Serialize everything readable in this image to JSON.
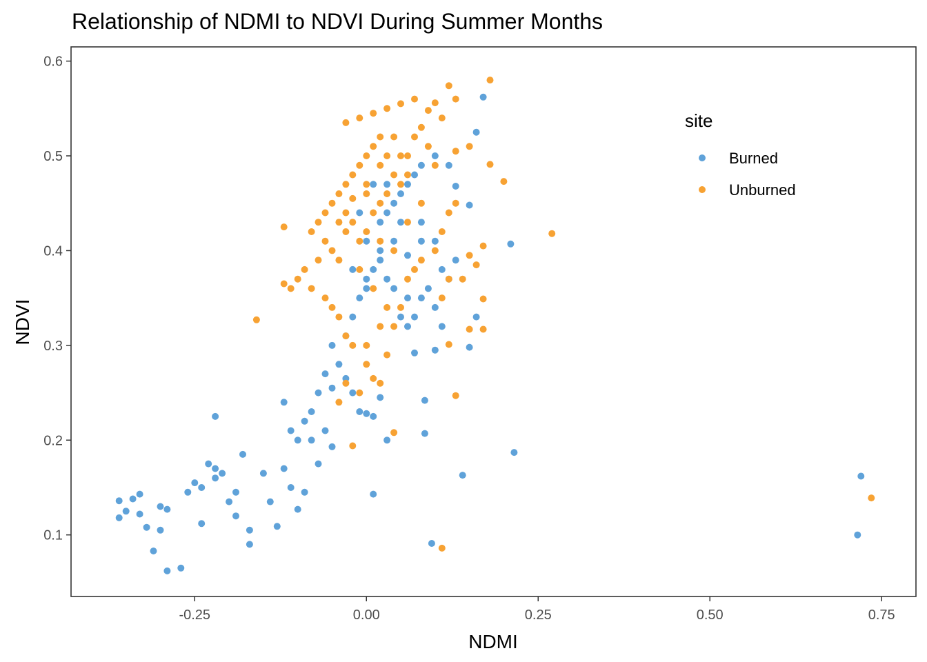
{
  "chart_data": {
    "type": "scatter",
    "title": "Relationship of NDMI to NDVI During Summer Months",
    "xlabel": "NDMI",
    "ylabel": "NDVI",
    "xlim": [
      -0.43,
      0.8
    ],
    "ylim": [
      0.035,
      0.615
    ],
    "x_ticks": [
      -0.25,
      0.0,
      0.25,
      0.5,
      0.75
    ],
    "x_tick_labels": [
      "-0.25",
      "0.00",
      "0.25",
      "0.50",
      "0.75"
    ],
    "y_ticks": [
      0.1,
      0.2,
      0.3,
      0.4,
      0.5,
      0.6
    ],
    "y_tick_labels": [
      "0.1",
      "0.2",
      "0.3",
      "0.4",
      "0.5",
      "0.6"
    ],
    "grid": false,
    "legend": {
      "title": "site",
      "position": "top-right"
    },
    "series": [
      {
        "name": "Burned",
        "color": "#5fa2d9",
        "points": [
          [
            -0.36,
            0.136
          ],
          [
            -0.34,
            0.138
          ],
          [
            -0.33,
            0.143
          ],
          [
            -0.35,
            0.125
          ],
          [
            -0.33,
            0.122
          ],
          [
            -0.32,
            0.108
          ],
          [
            -0.36,
            0.118
          ],
          [
            -0.3,
            0.105
          ],
          [
            -0.31,
            0.083
          ],
          [
            -0.29,
            0.062
          ],
          [
            -0.27,
            0.065
          ],
          [
            -0.3,
            0.13
          ],
          [
            -0.29,
            0.127
          ],
          [
            -0.26,
            0.145
          ],
          [
            -0.25,
            0.155
          ],
          [
            -0.24,
            0.112
          ],
          [
            -0.23,
            0.175
          ],
          [
            -0.22,
            0.17
          ],
          [
            -0.24,
            0.15
          ],
          [
            -0.22,
            0.16
          ],
          [
            -0.21,
            0.165
          ],
          [
            -0.22,
            0.225
          ],
          [
            -0.2,
            0.135
          ],
          [
            -0.19,
            0.145
          ],
          [
            -0.17,
            0.09
          ],
          [
            -0.17,
            0.105
          ],
          [
            -0.18,
            0.185
          ],
          [
            -0.19,
            0.12
          ],
          [
            -0.15,
            0.165
          ],
          [
            -0.14,
            0.135
          ],
          [
            -0.13,
            0.109
          ],
          [
            -0.12,
            0.17
          ],
          [
            -0.11,
            0.15
          ],
          [
            -0.1,
            0.127
          ],
          [
            -0.09,
            0.145
          ],
          [
            -0.1,
            0.2
          ],
          [
            -0.11,
            0.21
          ],
          [
            -0.12,
            0.24
          ],
          [
            -0.08,
            0.2
          ],
          [
            -0.07,
            0.175
          ],
          [
            -0.06,
            0.21
          ],
          [
            -0.05,
            0.193
          ],
          [
            -0.04,
            0.28
          ],
          [
            -0.05,
            0.3
          ],
          [
            -0.03,
            0.31
          ],
          [
            -0.02,
            0.33
          ],
          [
            -0.01,
            0.35
          ],
          [
            0.0,
            0.36
          ],
          [
            0.01,
            0.38
          ],
          [
            0.02,
            0.39
          ],
          [
            0.03,
            0.37
          ],
          [
            0.05,
            0.33
          ],
          [
            0.06,
            0.32
          ],
          [
            0.07,
            0.33
          ],
          [
            0.08,
            0.35
          ],
          [
            0.09,
            0.36
          ],
          [
            0.1,
            0.34
          ],
          [
            0.11,
            0.32
          ],
          [
            0.12,
            0.37
          ],
          [
            0.13,
            0.39
          ],
          [
            0.15,
            0.298
          ],
          [
            0.16,
            0.33
          ],
          [
            0.07,
            0.292
          ],
          [
            0.1,
            0.295
          ],
          [
            0.14,
            0.163
          ],
          [
            0.21,
            0.407
          ],
          [
            0.215,
            0.187
          ],
          [
            0.17,
            0.562
          ],
          [
            0.15,
            0.448
          ],
          [
            0.13,
            0.468
          ],
          [
            0.12,
            0.49
          ],
          [
            0.1,
            0.5
          ],
          [
            0.01,
            0.143
          ],
          [
            0.095,
            0.091
          ],
          [
            0.085,
            0.207
          ],
          [
            0.085,
            0.242
          ],
          [
            0.02,
            0.245
          ],
          [
            0.01,
            0.225
          ],
          [
            0.03,
            0.2
          ],
          [
            -0.01,
            0.23
          ],
          [
            0.0,
            0.228
          ],
          [
            -0.03,
            0.265
          ],
          [
            -0.02,
            0.25
          ],
          [
            -0.05,
            0.255
          ],
          [
            -0.06,
            0.27
          ],
          [
            -0.07,
            0.25
          ],
          [
            -0.08,
            0.23
          ],
          [
            -0.09,
            0.22
          ],
          [
            0.72,
            0.162
          ],
          [
            0.715,
            0.1
          ],
          [
            0.16,
            0.525
          ],
          [
            0.08,
            0.49
          ],
          [
            0.06,
            0.47
          ],
          [
            0.04,
            0.45
          ],
          [
            0.02,
            0.43
          ],
          [
            0.0,
            0.41
          ],
          [
            0.03,
            0.44
          ],
          [
            0.05,
            0.46
          ],
          [
            0.07,
            0.48
          ],
          [
            0.01,
            0.47
          ],
          [
            0.03,
            0.47
          ],
          [
            0.05,
            0.43
          ],
          [
            -0.01,
            0.44
          ],
          [
            0.04,
            0.41
          ],
          [
            0.06,
            0.395
          ],
          [
            0.08,
            0.41
          ],
          [
            0.02,
            0.4
          ],
          [
            0.0,
            0.37
          ],
          [
            -0.02,
            0.38
          ],
          [
            0.04,
            0.36
          ],
          [
            0.06,
            0.35
          ],
          [
            0.08,
            0.43
          ],
          [
            0.1,
            0.41
          ],
          [
            0.11,
            0.38
          ]
        ]
      },
      {
        "name": "Unburned",
        "color": "#f7a233",
        "points": [
          [
            0.18,
            0.58
          ],
          [
            0.12,
            0.574
          ],
          [
            0.13,
            0.56
          ],
          [
            0.1,
            0.556
          ],
          [
            0.07,
            0.56
          ],
          [
            0.05,
            0.555
          ],
          [
            0.03,
            0.55
          ],
          [
            0.01,
            0.545
          ],
          [
            -0.01,
            0.54
          ],
          [
            -0.03,
            0.535
          ],
          [
            0.09,
            0.548
          ],
          [
            0.11,
            0.54
          ],
          [
            0.15,
            0.51
          ],
          [
            0.13,
            0.505
          ],
          [
            0.18,
            0.491
          ],
          [
            0.2,
            0.473
          ],
          [
            0.27,
            0.418
          ],
          [
            0.17,
            0.405
          ],
          [
            0.16,
            0.385
          ],
          [
            0.15,
            0.395
          ],
          [
            0.14,
            0.37
          ],
          [
            0.12,
            0.37
          ],
          [
            0.11,
            0.35
          ],
          [
            0.17,
            0.349
          ],
          [
            0.17,
            0.317
          ],
          [
            0.15,
            0.317
          ],
          [
            0.12,
            0.301
          ],
          [
            0.13,
            0.247
          ],
          [
            0.04,
            0.208
          ],
          [
            -0.02,
            0.194
          ],
          [
            0.735,
            0.139
          ],
          [
            0.11,
            0.086
          ],
          [
            -0.16,
            0.327
          ],
          [
            -0.12,
            0.425
          ],
          [
            -0.08,
            0.42
          ],
          [
            -0.07,
            0.43
          ],
          [
            -0.05,
            0.45
          ],
          [
            -0.04,
            0.46
          ],
          [
            -0.03,
            0.47
          ],
          [
            -0.02,
            0.48
          ],
          [
            -0.01,
            0.49
          ],
          [
            0.0,
            0.5
          ],
          [
            0.01,
            0.51
          ],
          [
            0.02,
            0.52
          ],
          [
            0.03,
            0.5
          ],
          [
            0.04,
            0.48
          ],
          [
            0.05,
            0.47
          ],
          [
            -0.06,
            0.44
          ],
          [
            -0.06,
            0.41
          ],
          [
            -0.05,
            0.4
          ],
          [
            -0.04,
            0.39
          ],
          [
            -0.03,
            0.42
          ],
          [
            -0.02,
            0.43
          ],
          [
            -0.01,
            0.41
          ],
          [
            0.0,
            0.42
          ],
          [
            0.01,
            0.44
          ],
          [
            0.02,
            0.45
          ],
          [
            0.03,
            0.46
          ],
          [
            0.0,
            0.46
          ],
          [
            -0.02,
            0.455
          ],
          [
            -0.04,
            0.43
          ],
          [
            -0.07,
            0.39
          ],
          [
            -0.09,
            0.38
          ],
          [
            -0.1,
            0.37
          ],
          [
            -0.11,
            0.36
          ],
          [
            -0.12,
            0.365
          ],
          [
            -0.08,
            0.36
          ],
          [
            -0.06,
            0.35
          ],
          [
            -0.05,
            0.34
          ],
          [
            -0.04,
            0.33
          ],
          [
            -0.03,
            0.31
          ],
          [
            -0.02,
            0.3
          ],
          [
            0.0,
            0.28
          ],
          [
            0.01,
            0.265
          ],
          [
            0.02,
            0.26
          ],
          [
            0.03,
            0.29
          ],
          [
            0.04,
            0.32
          ],
          [
            0.05,
            0.34
          ],
          [
            0.06,
            0.37
          ],
          [
            0.07,
            0.38
          ],
          [
            0.08,
            0.39
          ],
          [
            0.1,
            0.4
          ],
          [
            0.11,
            0.42
          ],
          [
            0.12,
            0.44
          ],
          [
            0.13,
            0.45
          ],
          [
            0.06,
            0.5
          ],
          [
            0.07,
            0.52
          ],
          [
            0.08,
            0.53
          ],
          [
            0.09,
            0.51
          ],
          [
            0.1,
            0.49
          ],
          [
            -0.03,
            0.26
          ],
          [
            -0.04,
            0.24
          ],
          [
            -0.01,
            0.25
          ],
          [
            0.0,
            0.3
          ],
          [
            0.02,
            0.32
          ],
          [
            0.03,
            0.34
          ],
          [
            0.01,
            0.36
          ],
          [
            -0.01,
            0.38
          ],
          [
            0.05,
            0.5
          ],
          [
            0.06,
            0.48
          ],
          [
            0.04,
            0.52
          ],
          [
            0.02,
            0.49
          ],
          [
            -0.03,
            0.44
          ],
          [
            0.0,
            0.47
          ],
          [
            0.02,
            0.41
          ],
          [
            0.04,
            0.4
          ],
          [
            0.06,
            0.43
          ],
          [
            0.08,
            0.45
          ]
        ]
      }
    ]
  }
}
